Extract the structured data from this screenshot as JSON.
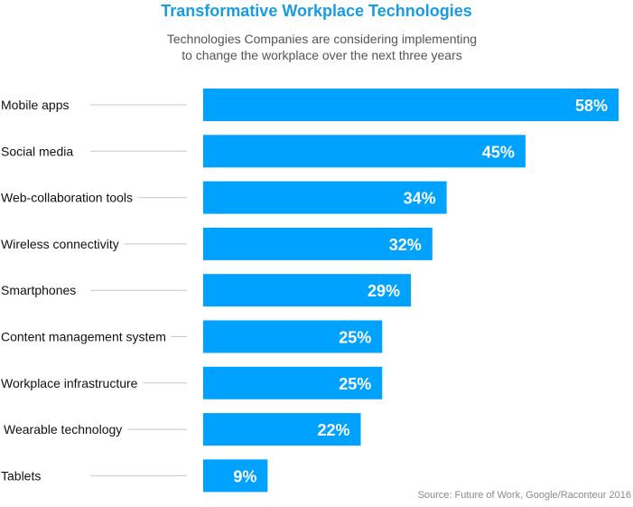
{
  "title": "Transformative Workplace Technologies",
  "subtitle_lines": [
    "Technologies Companies are considering implementing",
    "to change the workplace over the next three years"
  ],
  "source": "Source: Future of Work, Google/Raconteur 2016",
  "colors": {
    "bar": "#00a2ff",
    "title": "#1a9ce0",
    "connector": "#c8c8c8",
    "value_text": "#ffffff"
  },
  "chart_data": {
    "type": "bar",
    "orientation": "horizontal",
    "title": "Transformative Workplace Technologies",
    "subtitle": "Technologies Companies are considering implementing to change the workplace over the next three years",
    "categories": [
      "Mobile apps",
      "Social media",
      "Web-collaboration tools",
      "Wireless connectivity",
      "Smartphones",
      "Content management system",
      "Workplace infrastructure",
      "Wearable technology",
      "Tablets"
    ],
    "values": [
      58,
      45,
      34,
      32,
      29,
      25,
      25,
      22,
      9
    ],
    "value_labels": [
      "58%",
      "45%",
      "34%",
      "32%",
      "29%",
      "25%",
      "25%",
      "22%",
      "9%"
    ],
    "unit": "%",
    "grid": false,
    "legend": "none",
    "source": "Source: Future of Work, Google/Raconteur 2016"
  }
}
